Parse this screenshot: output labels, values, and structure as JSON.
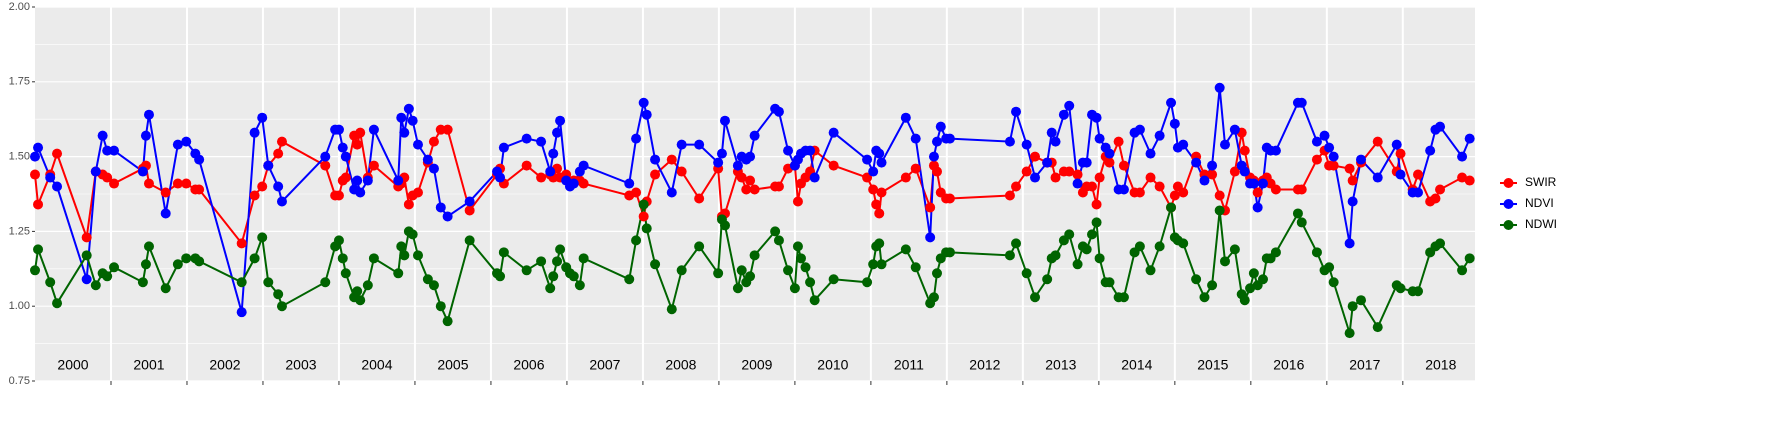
{
  "chart_data": {
    "type": "line",
    "x": [
      2000.0,
      2000.04,
      2000.2,
      2000.29,
      2000.68,
      2000.8,
      2000.89,
      2000.95,
      2001.04,
      2001.42,
      2001.46,
      2001.5,
      2001.72,
      2001.88,
      2001.99,
      2002.11,
      2002.16,
      2002.72,
      2002.89,
      2002.99,
      2003.07,
      2003.2,
      2003.25,
      2003.82,
      2003.95,
      2004.0,
      2004.05,
      2004.09,
      2004.2,
      2004.24,
      2004.28,
      2004.38,
      2004.46,
      2004.78,
      2004.82,
      2004.86,
      2004.92,
      2004.97,
      2005.04,
      2005.17,
      2005.25,
      2005.34,
      2005.43,
      2005.72,
      2006.08,
      2006.12,
      2006.17,
      2006.47,
      2006.66,
      2006.78,
      2006.82,
      2006.87,
      2006.91,
      2006.99,
      2007.04,
      2007.09,
      2007.17,
      2007.22,
      2007.82,
      2007.91,
      2008.01,
      2008.05,
      2008.16,
      2008.38,
      2008.51,
      2008.74,
      2008.99,
      2009.04,
      2009.08,
      2009.25,
      2009.3,
      2009.36,
      2009.41,
      2009.47,
      2009.74,
      2009.79,
      2009.91,
      2010.0,
      2010.04,
      2010.08,
      2010.14,
      2010.2,
      2010.26,
      2010.51,
      2010.95,
      2011.03,
      2011.07,
      2011.11,
      2011.14,
      2011.46,
      2011.59,
      2011.78,
      2011.83,
      2011.87,
      2011.92,
      2011.99,
      2012.04,
      2012.83,
      2012.91,
      2013.05,
      2013.16,
      2013.32,
      2013.38,
      2013.43,
      2013.54,
      2013.61,
      2013.72,
      2013.79,
      2013.84,
      2013.91,
      2013.97,
      2014.01,
      2014.09,
      2014.14,
      2014.26,
      2014.33,
      2014.47,
      2014.54,
      2014.68,
      2014.8,
      2014.95,
      2015.0,
      2015.04,
      2015.11,
      2015.28,
      2015.39,
      2015.49,
      2015.59,
      2015.66,
      2015.79,
      2015.88,
      2015.92,
      2015.99,
      2016.04,
      2016.09,
      2016.16,
      2016.21,
      2016.26,
      2016.33,
      2016.62,
      2016.67,
      2016.87,
      2016.97,
      2017.03,
      2017.09,
      2017.3,
      2017.34,
      2017.45,
      2017.67,
      2017.92,
      2017.97,
      2018.13,
      2018.2,
      2018.36,
      2018.43,
      2018.49,
      2018.78,
      2018.88
    ],
    "series": [
      {
        "name": "SWIR",
        "color": "#ff0000",
        "values": [
          1.44,
          1.34,
          1.44,
          1.51,
          1.23,
          1.45,
          1.44,
          1.43,
          1.41,
          1.46,
          1.47,
          1.41,
          1.38,
          1.41,
          1.41,
          1.39,
          1.39,
          1.21,
          1.37,
          1.4,
          1.47,
          1.51,
          1.55,
          1.47,
          1.37,
          1.37,
          1.42,
          1.43,
          1.57,
          1.54,
          1.58,
          1.43,
          1.47,
          1.4,
          1.41,
          1.43,
          1.34,
          1.37,
          1.38,
          1.48,
          1.55,
          1.59,
          1.59,
          1.32,
          1.44,
          1.46,
          1.41,
          1.47,
          1.43,
          1.44,
          1.43,
          1.46,
          1.43,
          1.44,
          1.41,
          1.42,
          1.42,
          1.41,
          1.37,
          1.38,
          1.3,
          1.35,
          1.44,
          1.49,
          1.45,
          1.36,
          1.46,
          1.3,
          1.31,
          1.45,
          1.43,
          1.39,
          1.42,
          1.39,
          1.4,
          1.4,
          1.46,
          1.47,
          1.35,
          1.41,
          1.43,
          1.45,
          1.52,
          1.47,
          1.43,
          1.39,
          1.34,
          1.31,
          1.38,
          1.43,
          1.46,
          1.33,
          1.47,
          1.45,
          1.38,
          1.36,
          1.36,
          1.37,
          1.4,
          1.45,
          1.5,
          1.48,
          1.48,
          1.43,
          1.45,
          1.45,
          1.44,
          1.38,
          1.4,
          1.4,
          1.34,
          1.43,
          1.5,
          1.48,
          1.55,
          1.47,
          1.38,
          1.38,
          1.43,
          1.4,
          1.33,
          1.37,
          1.4,
          1.38,
          1.5,
          1.44,
          1.44,
          1.37,
          1.32,
          1.45,
          1.58,
          1.52,
          1.43,
          1.42,
          1.38,
          1.42,
          1.43,
          1.41,
          1.39,
          1.39,
          1.39,
          1.49,
          1.52,
          1.47,
          1.47,
          1.46,
          1.42,
          1.48,
          1.55,
          1.45,
          1.51,
          1.39,
          1.44,
          1.35,
          1.36,
          1.39,
          1.43,
          1.42
        ]
      },
      {
        "name": "NDVI",
        "color": "#0000ff",
        "values": [
          1.5,
          1.53,
          1.43,
          1.4,
          1.09,
          1.45,
          1.57,
          1.52,
          1.52,
          1.45,
          1.57,
          1.64,
          1.31,
          1.54,
          1.55,
          1.51,
          1.49,
          0.98,
          1.58,
          1.63,
          1.47,
          1.4,
          1.35,
          1.5,
          1.59,
          1.59,
          1.53,
          1.5,
          1.39,
          1.42,
          1.38,
          1.42,
          1.59,
          1.42,
          1.63,
          1.58,
          1.66,
          1.62,
          1.54,
          1.49,
          1.46,
          1.33,
          1.3,
          1.35,
          1.45,
          1.43,
          1.53,
          1.56,
          1.55,
          1.45,
          1.51,
          1.58,
          1.62,
          1.42,
          1.4,
          1.41,
          1.45,
          1.47,
          1.41,
          1.56,
          1.68,
          1.64,
          1.49,
          1.38,
          1.54,
          1.54,
          1.48,
          1.51,
          1.62,
          1.47,
          1.5,
          1.49,
          1.5,
          1.57,
          1.66,
          1.65,
          1.52,
          1.47,
          1.49,
          1.51,
          1.52,
          1.52,
          1.43,
          1.58,
          1.49,
          1.45,
          1.52,
          1.51,
          1.48,
          1.63,
          1.56,
          1.23,
          1.5,
          1.55,
          1.6,
          1.56,
          1.56,
          1.55,
          1.65,
          1.54,
          1.43,
          1.48,
          1.58,
          1.55,
          1.64,
          1.67,
          1.41,
          1.48,
          1.48,
          1.64,
          1.63,
          1.56,
          1.53,
          1.51,
          1.39,
          1.39,
          1.58,
          1.59,
          1.51,
          1.57,
          1.68,
          1.61,
          1.53,
          1.54,
          1.48,
          1.42,
          1.47,
          1.73,
          1.54,
          1.59,
          1.47,
          1.45,
          1.41,
          1.41,
          1.33,
          1.41,
          1.53,
          1.52,
          1.52,
          1.68,
          1.68,
          1.55,
          1.57,
          1.53,
          1.5,
          1.21,
          1.35,
          1.49,
          1.43,
          1.54,
          1.44,
          1.38,
          1.38,
          1.52,
          1.59,
          1.6,
          1.5,
          1.56
        ]
      },
      {
        "name": "NDWI",
        "color": "#006400",
        "values": [
          1.12,
          1.19,
          1.08,
          1.01,
          1.17,
          1.07,
          1.11,
          1.1,
          1.13,
          1.08,
          1.14,
          1.2,
          1.06,
          1.14,
          1.16,
          1.16,
          1.15,
          1.08,
          1.16,
          1.23,
          1.08,
          1.04,
          1.0,
          1.08,
          1.2,
          1.22,
          1.16,
          1.11,
          1.03,
          1.05,
          1.02,
          1.07,
          1.16,
          1.11,
          1.2,
          1.17,
          1.25,
          1.24,
          1.17,
          1.09,
          1.07,
          1.0,
          0.95,
          1.22,
          1.11,
          1.1,
          1.18,
          1.12,
          1.15,
          1.06,
          1.1,
          1.15,
          1.19,
          1.13,
          1.11,
          1.1,
          1.07,
          1.16,
          1.09,
          1.22,
          1.34,
          1.26,
          1.14,
          0.99,
          1.12,
          1.2,
          1.11,
          1.29,
          1.27,
          1.06,
          1.12,
          1.08,
          1.1,
          1.17,
          1.25,
          1.22,
          1.12,
          1.06,
          1.2,
          1.16,
          1.13,
          1.08,
          1.02,
          1.09,
          1.08,
          1.14,
          1.2,
          1.21,
          1.14,
          1.19,
          1.13,
          1.01,
          1.03,
          1.11,
          1.16,
          1.18,
          1.18,
          1.17,
          1.21,
          1.11,
          1.03,
          1.09,
          1.16,
          1.17,
          1.22,
          1.24,
          1.14,
          1.2,
          1.19,
          1.24,
          1.28,
          1.16,
          1.08,
          1.08,
          1.03,
          1.03,
          1.18,
          1.2,
          1.12,
          1.2,
          1.33,
          1.23,
          1.22,
          1.21,
          1.09,
          1.03,
          1.07,
          1.32,
          1.15,
          1.19,
          1.04,
          1.02,
          1.06,
          1.11,
          1.07,
          1.09,
          1.16,
          1.16,
          1.18,
          1.31,
          1.28,
          1.18,
          1.12,
          1.13,
          1.08,
          0.91,
          1.0,
          1.02,
          0.93,
          1.07,
          1.06,
          1.05,
          1.05,
          1.18,
          1.2,
          1.21,
          1.12,
          1.16
        ]
      }
    ],
    "xlim": [
      2000,
      2018.95
    ],
    "xticks": [
      {
        "value": 2000.5,
        "label": "2000"
      },
      {
        "value": 2001.5,
        "label": "2001"
      },
      {
        "value": 2002.5,
        "label": "2002"
      },
      {
        "value": 2003.5,
        "label": "2003"
      },
      {
        "value": 2004.5,
        "label": "2004"
      },
      {
        "value": 2005.5,
        "label": "2005"
      },
      {
        "value": 2006.5,
        "label": "2006"
      },
      {
        "value": 2007.5,
        "label": "2007"
      },
      {
        "value": 2008.5,
        "label": "2008"
      },
      {
        "value": 2009.5,
        "label": "2009"
      },
      {
        "value": 2010.5,
        "label": "2010"
      },
      {
        "value": 2011.5,
        "label": "2011"
      },
      {
        "value": 2012.5,
        "label": "2012"
      },
      {
        "value": 2013.5,
        "label": "2013"
      },
      {
        "value": 2014.5,
        "label": "2014"
      },
      {
        "value": 2015.5,
        "label": "2015"
      },
      {
        "value": 2016.5,
        "label": "2016"
      },
      {
        "value": 2017.5,
        "label": "2017"
      },
      {
        "value": 2018.5,
        "label": "2018"
      }
    ],
    "ylim": [
      0.75,
      2.0
    ],
    "yticks": [
      0.75,
      {
        "value": 1.0,
        "label": "1.00"
      },
      1.25,
      {
        "value": 1.5,
        "label": "1.50"
      },
      1.75,
      {
        "value": 2.0,
        "label": "2.00"
      }
    ],
    "grid": true,
    "legend": "right"
  }
}
